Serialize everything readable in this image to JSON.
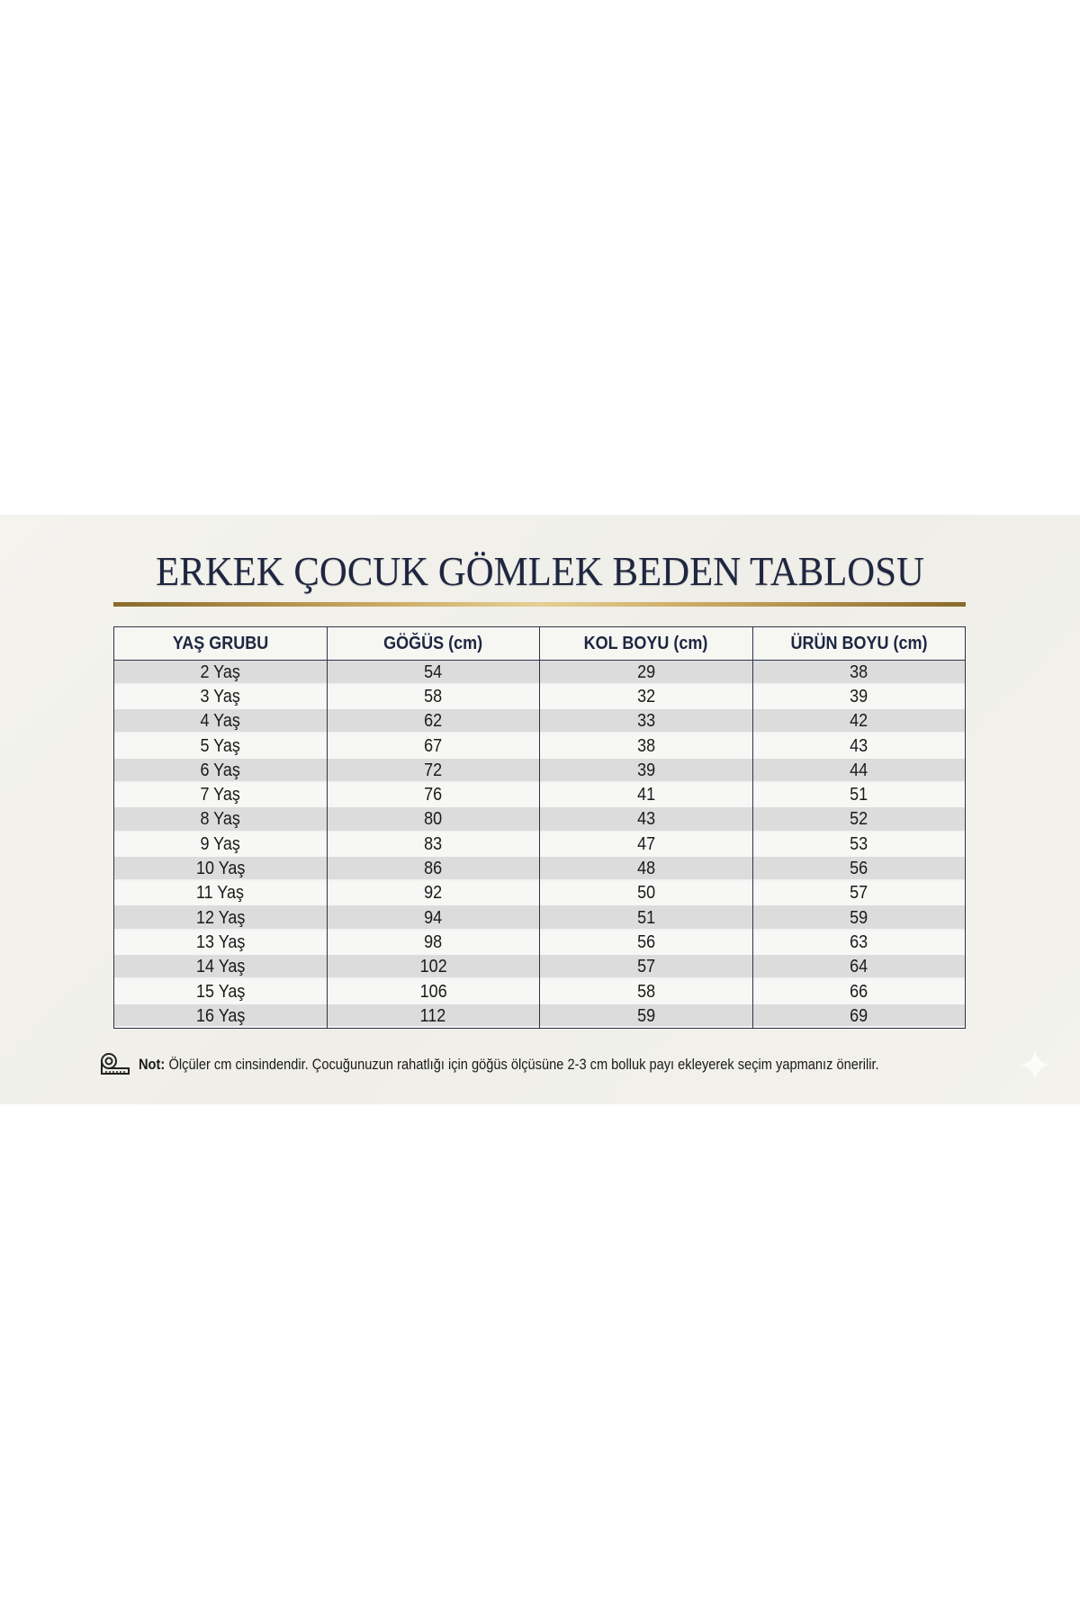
{
  "title": "ERKEK ÇOCUK GÖMLEK BEDEN TABLOSU",
  "table": {
    "headers": [
      "YAŞ GRUBU",
      "GÖĞÜS (cm)",
      "KOL BOYU (cm)",
      "ÜRÜN BOYU (cm)"
    ],
    "rows": [
      [
        "2 Yaş",
        "54",
        "29",
        "38"
      ],
      [
        "3 Yaş",
        "58",
        "32",
        "39"
      ],
      [
        "4 Yaş",
        "62",
        "33",
        "42"
      ],
      [
        "5 Yaş",
        "67",
        "38",
        "43"
      ],
      [
        "6 Yaş",
        "72",
        "39",
        "44"
      ],
      [
        "7 Yaş",
        "76",
        "41",
        "51"
      ],
      [
        "8 Yaş",
        "80",
        "43",
        "52"
      ],
      [
        "9 Yaş",
        "83",
        "47",
        "53"
      ],
      [
        "10 Yaş",
        "86",
        "48",
        "56"
      ],
      [
        "11 Yaş",
        "92",
        "50",
        "57"
      ],
      [
        "12 Yaş",
        "94",
        "51",
        "59"
      ],
      [
        "13 Yaş",
        "98",
        "56",
        "63"
      ],
      [
        "14 Yaş",
        "102",
        "57",
        "64"
      ],
      [
        "15 Yaş",
        "106",
        "58",
        "66"
      ],
      [
        "16 Yaş",
        "112",
        "59",
        "69"
      ]
    ]
  },
  "note": {
    "label": "Not:",
    "text": "Ölçüler cm cinsindendir. Çocuğunuzun rahatlığı için göğüs ölçüsüne 2-3 cm bolluk payı ekleyerek seçim yapmanız önerilir.",
    "icon": "measuring-tape-icon"
  },
  "colors": {
    "title": "#1e2640",
    "gold": "#c8a75e",
    "row_alt": "#dcdcdc"
  }
}
